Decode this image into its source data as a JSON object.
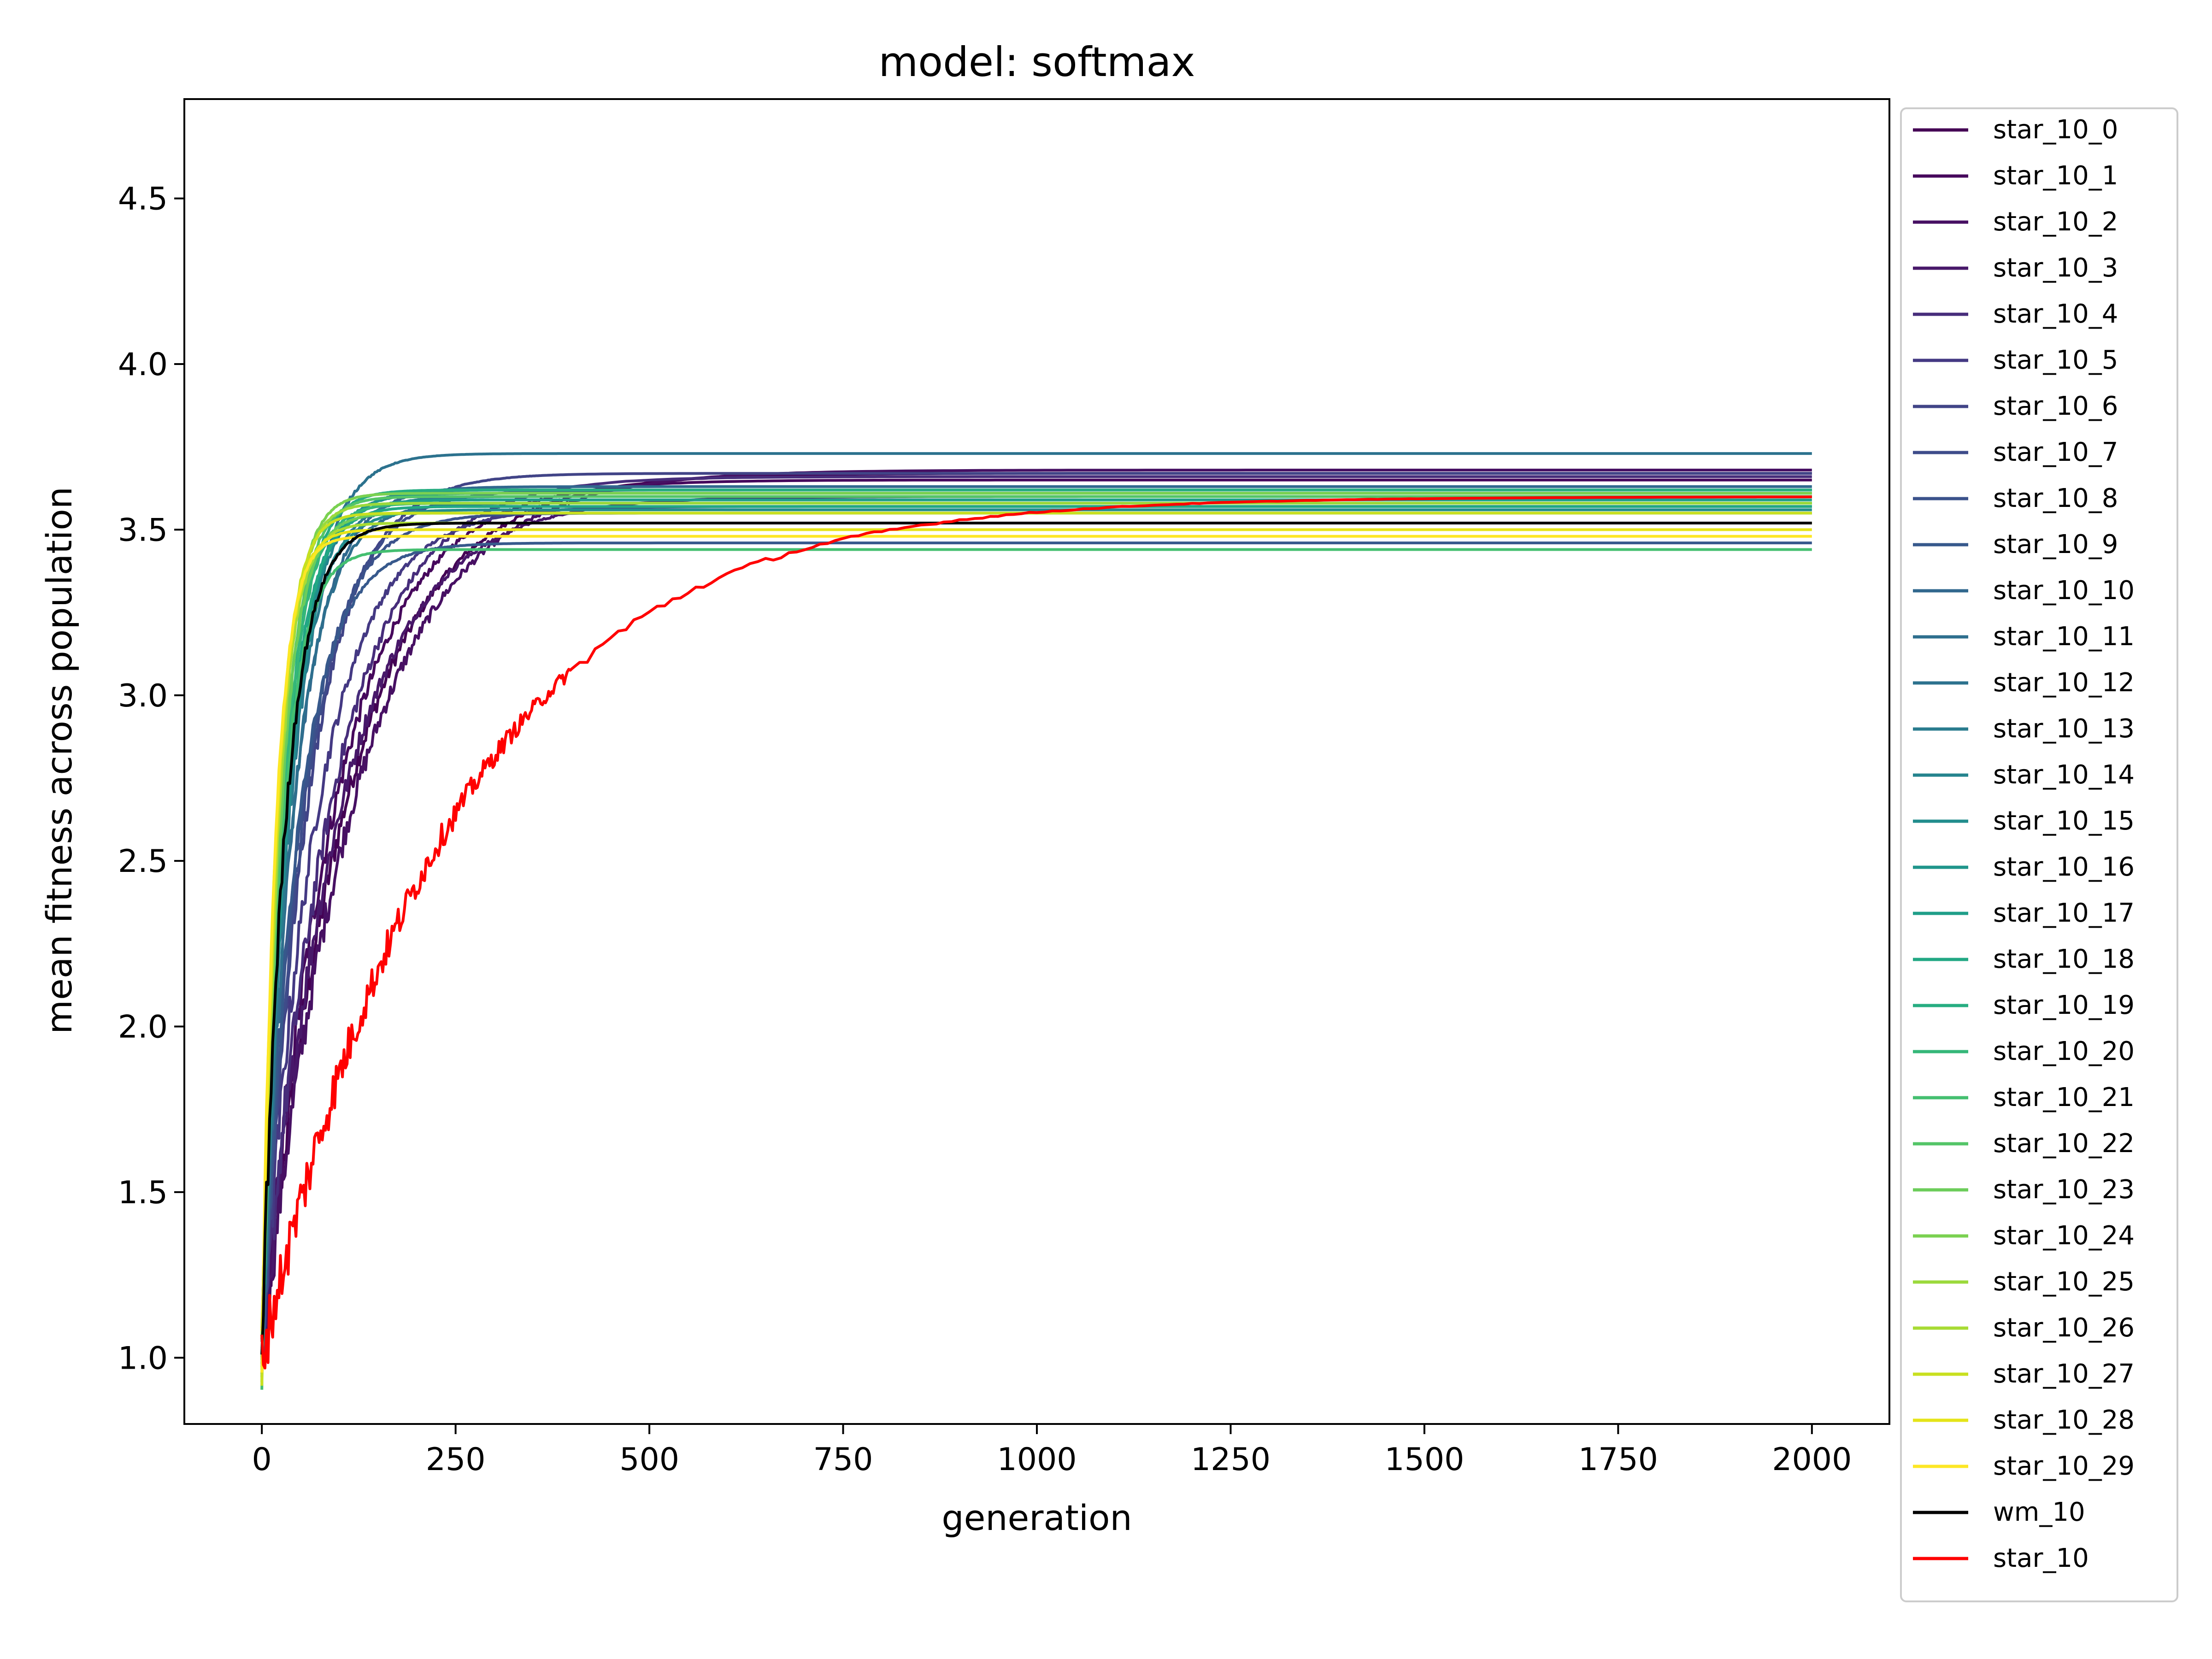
{
  "chart_data": {
    "type": "line",
    "title": "model: softmax",
    "xlabel": "generation",
    "ylabel": "mean fitness across population",
    "xlim": [
      -100,
      2100
    ],
    "ylim": [
      0.8,
      4.8
    ],
    "xticks": [
      0,
      250,
      500,
      750,
      1000,
      1250,
      1500,
      1750,
      2000
    ],
    "yticks": [
      1.0,
      1.5,
      2.0,
      2.5,
      3.0,
      3.5,
      4.0,
      4.5
    ],
    "xtick_labels": [
      "0",
      "250",
      "500",
      "750",
      "1000",
      "1250",
      "1500",
      "1750",
      "2000"
    ],
    "ytick_labels": [
      "1.0",
      "1.5",
      "2.0",
      "2.5",
      "3.0",
      "3.5",
      "4.0",
      "4.5"
    ],
    "grid": false,
    "legend_position": "outside-right",
    "series": [
      {
        "name": "star_10_0",
        "color": "#440154",
        "plateau": 3.67,
        "tau": 110
      },
      {
        "name": "star_10_1",
        "color": "#46085c",
        "plateau": 3.65,
        "tau": 95
      },
      {
        "name": "star_10_2",
        "color": "#471063",
        "plateau": 3.68,
        "tau": 120
      },
      {
        "name": "star_10_3",
        "color": "#48186a",
        "plateau": 3.6,
        "tau": 100
      },
      {
        "name": "star_10_4",
        "color": "#472d7b",
        "plateau": 3.66,
        "tau": 90
      },
      {
        "name": "star_10_5",
        "color": "#443983",
        "plateau": 3.57,
        "tau": 70
      },
      {
        "name": "star_10_6",
        "color": "#414487",
        "plateau": 3.67,
        "tau": 60
      },
      {
        "name": "star_10_7",
        "color": "#3e4c8a",
        "plateau": 3.62,
        "tau": 55
      },
      {
        "name": "star_10_8",
        "color": "#3b528b",
        "plateau": 3.55,
        "tau": 50
      },
      {
        "name": "star_10_9",
        "color": "#37598c",
        "plateau": 3.46,
        "tau": 45
      },
      {
        "name": "star_10_10",
        "color": "#31688e",
        "plateau": 3.63,
        "tau": 42
      },
      {
        "name": "star_10_11",
        "color": "#2e6f8e",
        "plateau": 3.58,
        "tau": 40
      },
      {
        "name": "star_10_12",
        "color": "#2c728e",
        "plateau": 3.73,
        "tau": 38
      },
      {
        "name": "star_10_13",
        "color": "#297b8e",
        "plateau": 3.6,
        "tau": 36
      },
      {
        "name": "star_10_14",
        "color": "#25848e",
        "plateau": 3.62,
        "tau": 34
      },
      {
        "name": "star_10_15",
        "color": "#228d8d",
        "plateau": 3.56,
        "tau": 33
      },
      {
        "name": "star_10_16",
        "color": "#1f958b",
        "plateau": 3.61,
        "tau": 32
      },
      {
        "name": "star_10_17",
        "color": "#1f9e89",
        "plateau": 3.59,
        "tau": 30
      },
      {
        "name": "star_10_18",
        "color": "#22a884",
        "plateau": 3.57,
        "tau": 29
      },
      {
        "name": "star_10_19",
        "color": "#27ad81",
        "plateau": 3.62,
        "tau": 28
      },
      {
        "name": "star_10_20",
        "color": "#35b779",
        "plateau": 3.58,
        "tau": 27
      },
      {
        "name": "star_10_21",
        "color": "#44bf70",
        "plateau": 3.44,
        "tau": 26
      },
      {
        "name": "star_10_22",
        "color": "#54c568",
        "plateau": 3.6,
        "tau": 25
      },
      {
        "name": "star_10_23",
        "color": "#6ccd5a",
        "plateau": 3.55,
        "tau": 24
      },
      {
        "name": "star_10_24",
        "color": "#7ad151",
        "plateau": 3.61,
        "tau": 23
      },
      {
        "name": "star_10_25",
        "color": "#9bd93c",
        "plateau": 3.58,
        "tau": 22
      },
      {
        "name": "star_10_26",
        "color": "#a8db34",
        "plateau": 3.52,
        "tau": 21
      },
      {
        "name": "star_10_27",
        "color": "#c8e020",
        "plateau": 3.55,
        "tau": 20
      },
      {
        "name": "star_10_28",
        "color": "#e5e419",
        "plateau": 3.5,
        "tau": 19
      },
      {
        "name": "star_10_29",
        "color": "#fde725",
        "plateau": 3.48,
        "tau": 18
      },
      {
        "name": "wm_10",
        "color": "#000000",
        "plateau": 3.52,
        "tau": 30
      },
      {
        "name": "star_10",
        "color": "#ff0000",
        "plateau": 3.6,
        "tau": 250
      }
    ]
  }
}
